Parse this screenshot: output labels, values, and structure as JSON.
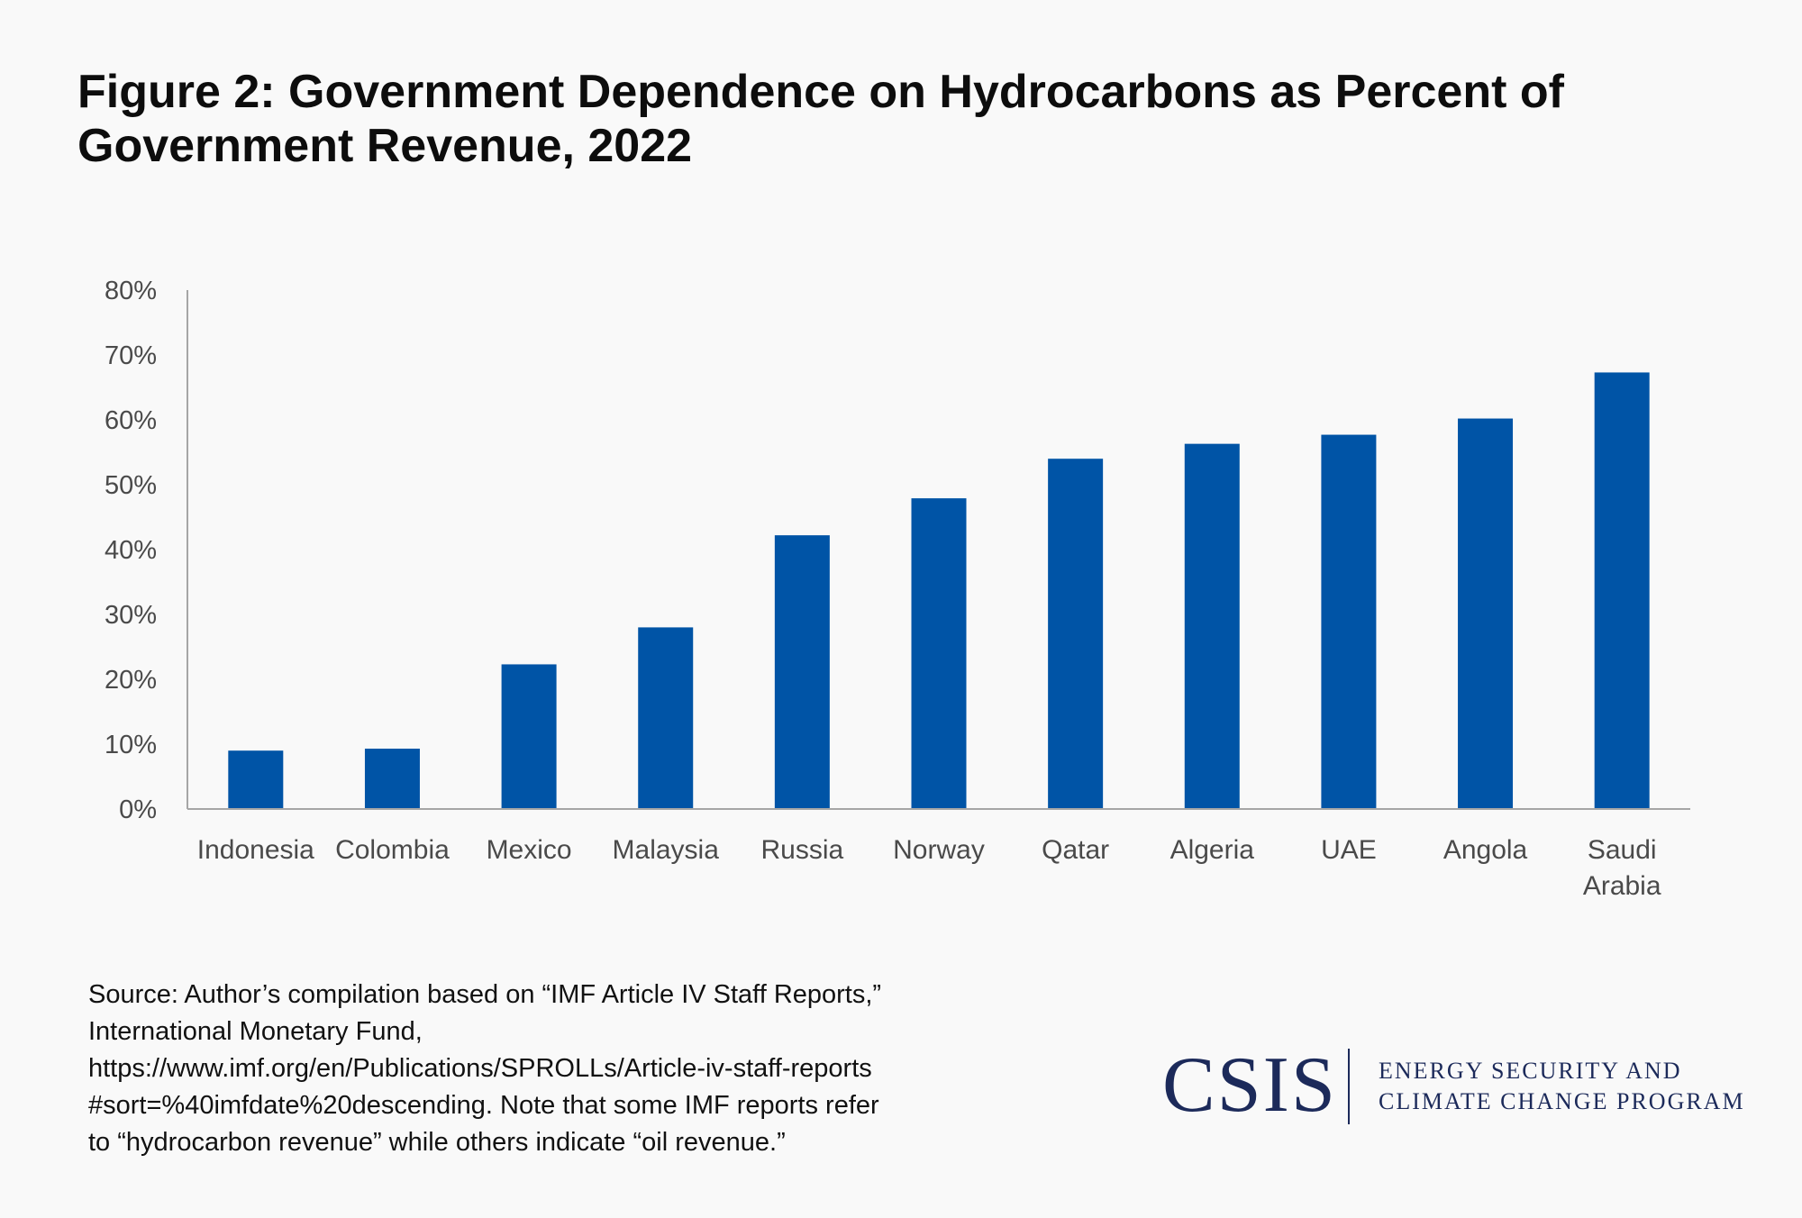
{
  "title": {
    "line1": "Figure 2: Government Dependence on Hydrocarbons as Percent of",
    "line2": "Government Revenue, 2022"
  },
  "chart_data": {
    "type": "bar",
    "title": "Figure 2: Government Dependence on Hydrocarbons as Percent of Government Revenue, 2022",
    "xlabel": "",
    "ylabel": "",
    "ylim": [
      0,
      80
    ],
    "yticks": [
      "0%",
      "10%",
      "20%",
      "30%",
      "40%",
      "50%",
      "60%",
      "70%",
      "80%"
    ],
    "categories": [
      "Indonesia",
      "Colombia",
      "Mexico",
      "Malaysia",
      "Russia",
      "Norway",
      "Qatar",
      "Algeria",
      "UAE",
      "Angola",
      "Saudi Arabia"
    ],
    "category_lines": [
      [
        "Indonesia"
      ],
      [
        "Colombia"
      ],
      [
        "Mexico"
      ],
      [
        "Malaysia"
      ],
      [
        "Russia"
      ],
      [
        "Norway"
      ],
      [
        "Qatar"
      ],
      [
        "Algeria"
      ],
      [
        "UAE"
      ],
      [
        "Angola"
      ],
      [
        "Saudi",
        "Arabia"
      ]
    ],
    "values": [
      9.0,
      9.3,
      22.3,
      28.0,
      42.2,
      47.9,
      54.0,
      56.3,
      57.7,
      60.2,
      67.3
    ],
    "bar_color": "#0054a6",
    "axis_color": "#a6a6a6",
    "grid": false,
    "legend": "none"
  },
  "source": {
    "lines": [
      "Source: Author’s compilation based on “IMF Article IV Staff Reports,”",
      "International Monetary Fund,",
      "https://www.imf.org/en/Publications/SPROLLs/Article-iv-staff-reports",
      "#sort=%40imfdate%20descending. Note that some IMF reports refer",
      "to “hydrocarbon revenue” while others indicate “oil revenue.”"
    ]
  },
  "logo": {
    "wordmark": "CSIS",
    "program_line1": "ENERGY SECURITY AND",
    "program_line2": "CLIMATE CHANGE PROGRAM",
    "color": "#1c2a5a"
  }
}
